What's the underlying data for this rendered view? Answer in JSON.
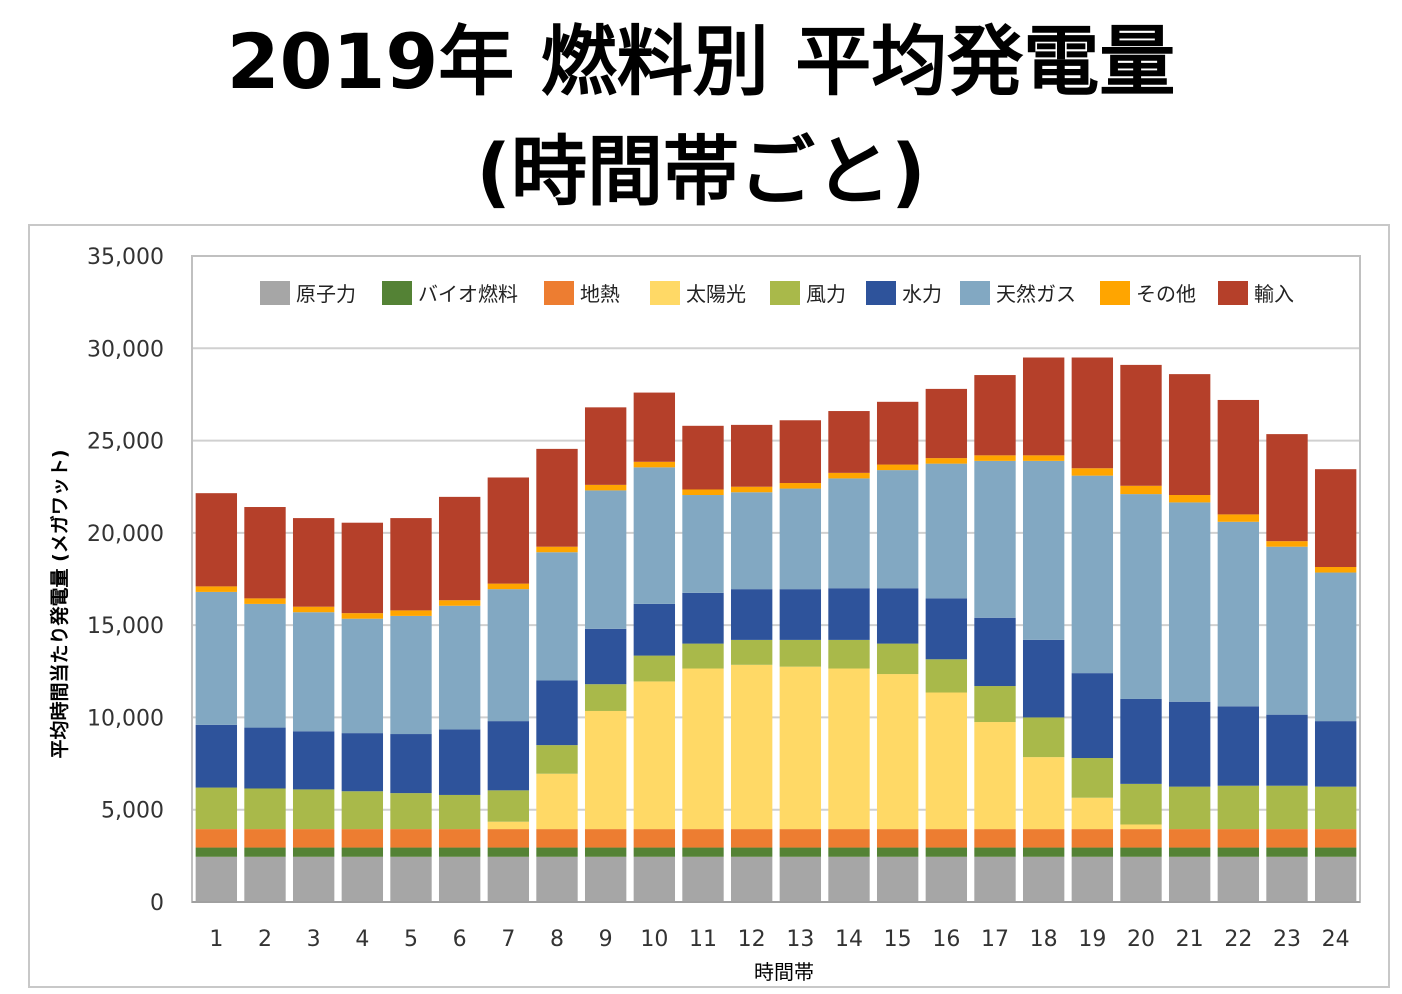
{
  "title": {
    "line1": "2019年 燃料別 平均発電量",
    "line2": "(時間帯ごと)"
  },
  "chart_data": {
    "type": "bar",
    "stacked": true,
    "xlabel": "時間帯",
    "ylabel": "平均時間当たり発電量 (メガワット)",
    "ylim": [
      0,
      35000
    ],
    "yticks": [
      0,
      5000,
      10000,
      15000,
      20000,
      25000,
      30000,
      35000
    ],
    "ytick_labels": [
      "0",
      "5,000",
      "10,000",
      "15,000",
      "20,000",
      "25,000",
      "30,000",
      "35,000"
    ],
    "grid": true,
    "legend_position": "top",
    "categories": [
      "1",
      "2",
      "3",
      "4",
      "5",
      "6",
      "7",
      "8",
      "9",
      "10",
      "11",
      "12",
      "13",
      "14",
      "15",
      "16",
      "17",
      "18",
      "19",
      "20",
      "21",
      "22",
      "23",
      "24"
    ],
    "series": [
      {
        "name": "原子力",
        "color": "#a6a6a6",
        "values": [
          2450,
          2450,
          2450,
          2450,
          2450,
          2450,
          2450,
          2450,
          2450,
          2450,
          2450,
          2450,
          2450,
          2450,
          2450,
          2450,
          2450,
          2450,
          2450,
          2450,
          2450,
          2450,
          2450,
          2450
        ]
      },
      {
        "name": "バイオ燃料",
        "color": "#548235",
        "values": [
          500,
          500,
          500,
          500,
          500,
          500,
          500,
          500,
          500,
          500,
          500,
          500,
          500,
          500,
          500,
          500,
          500,
          500,
          500,
          500,
          500,
          500,
          500,
          500
        ]
      },
      {
        "name": "地熱",
        "color": "#ed7d31",
        "values": [
          1000,
          1000,
          1000,
          1000,
          1000,
          1000,
          1000,
          1000,
          1000,
          1000,
          1000,
          1000,
          1000,
          1000,
          1000,
          1000,
          1000,
          1000,
          1000,
          1000,
          1000,
          1000,
          1000,
          1000
        ]
      },
      {
        "name": "太陽光",
        "color": "#ffd966",
        "values": [
          0,
          0,
          0,
          0,
          0,
          0,
          400,
          3000,
          6400,
          8000,
          8700,
          8900,
          8800,
          8700,
          8400,
          7400,
          5800,
          3900,
          1700,
          250,
          0,
          0,
          0,
          0
        ]
      },
      {
        "name": "風力",
        "color": "#a9b94a",
        "values": [
          2250,
          2200,
          2150,
          2050,
          1950,
          1850,
          1700,
          1550,
          1450,
          1400,
          1350,
          1350,
          1450,
          1550,
          1650,
          1800,
          1950,
          2150,
          2150,
          2200,
          2300,
          2350,
          2350,
          2300
        ]
      },
      {
        "name": "水力",
        "color": "#2e539b",
        "values": [
          3400,
          3300,
          3150,
          3150,
          3200,
          3550,
          3750,
          3500,
          3000,
          2800,
          2750,
          2750,
          2750,
          2800,
          3000,
          3300,
          3700,
          4200,
          4600,
          4600,
          4600,
          4300,
          3850,
          3550
        ]
      },
      {
        "name": "天然ガス",
        "color": "#82a8c2",
        "values": [
          7200,
          6700,
          6450,
          6200,
          6400,
          6700,
          7150,
          6950,
          7500,
          7400,
          5300,
          5250,
          5450,
          5950,
          6400,
          7300,
          8500,
          9700,
          10700,
          11100,
          10800,
          10000,
          9100,
          8050
        ]
      },
      {
        "name": "その他",
        "color": "#ffa500",
        "values": [
          300,
          300,
          300,
          300,
          300,
          300,
          300,
          300,
          300,
          300,
          300,
          300,
          300,
          300,
          300,
          300,
          300,
          300,
          400,
          450,
          400,
          400,
          300,
          300
        ]
      },
      {
        "name": "輸入",
        "color": "#b5402a",
        "values": [
          5050,
          4950,
          4800,
          4900,
          5000,
          5600,
          5750,
          5300,
          4200,
          3750,
          3450,
          3350,
          3400,
          3350,
          3400,
          3750,
          4350,
          5300,
          6000,
          6550,
          6550,
          6200,
          5800,
          5300
        ]
      }
    ]
  }
}
